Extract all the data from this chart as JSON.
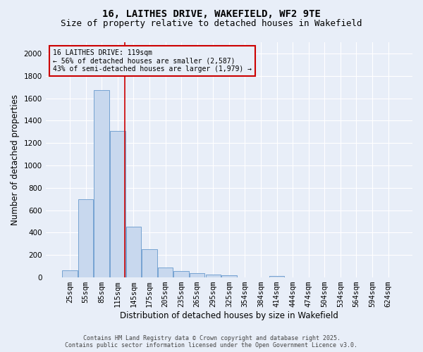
{
  "title_line1": "16, LAITHES DRIVE, WAKEFIELD, WF2 9TE",
  "title_line2": "Size of property relative to detached houses in Wakefield",
  "xlabel": "Distribution of detached houses by size in Wakefield",
  "ylabel": "Number of detached properties",
  "categories": [
    "25sqm",
    "55sqm",
    "85sqm",
    "115sqm",
    "145sqm",
    "175sqm",
    "205sqm",
    "235sqm",
    "265sqm",
    "295sqm",
    "325sqm",
    "354sqm",
    "384sqm",
    "414sqm",
    "444sqm",
    "474sqm",
    "504sqm",
    "534sqm",
    "564sqm",
    "594sqm",
    "624sqm"
  ],
  "values": [
    65,
    700,
    1670,
    1310,
    450,
    255,
    90,
    55,
    40,
    28,
    22,
    0,
    0,
    15,
    0,
    0,
    0,
    0,
    0,
    0,
    0
  ],
  "bar_color": "#c8d8ee",
  "bar_edge_color": "#6699cc",
  "red_line_x": 3.47,
  "annotation_box_text": "16 LAITHES DRIVE: 119sqm\n← 56% of detached houses are smaller (2,587)\n43% of semi-detached houses are larger (1,979) →",
  "ylim": [
    0,
    2100
  ],
  "yticks": [
    0,
    200,
    400,
    600,
    800,
    1000,
    1200,
    1400,
    1600,
    1800,
    2000
  ],
  "plot_bg_color": "#e8eef8",
  "fig_bg_color": "#e8eef8",
  "grid_color": "#ffffff",
  "footer_line1": "Contains HM Land Registry data © Crown copyright and database right 2025.",
  "footer_line2": "Contains public sector information licensed under the Open Government Licence v3.0.",
  "red_line_color": "#cc0000",
  "annotation_box_edge_color": "#cc0000",
  "annotation_font_size": 7.0,
  "title_fontsize": 10,
  "subtitle_fontsize": 9,
  "xlabel_fontsize": 8.5,
  "ylabel_fontsize": 8.5,
  "tick_fontsize": 7.5,
  "footer_fontsize": 6.0
}
